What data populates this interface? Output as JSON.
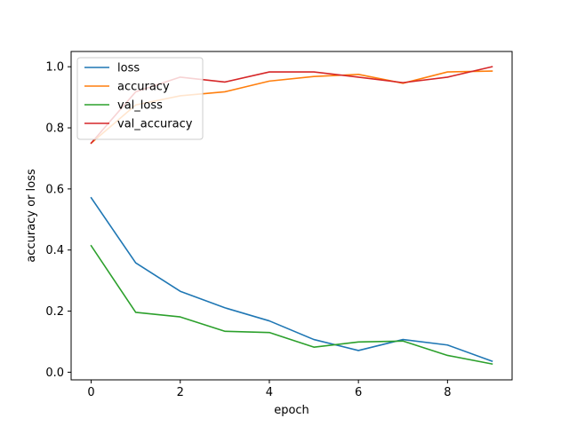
{
  "chart_data": {
    "type": "line",
    "title": "",
    "xlabel": "epoch",
    "ylabel": "accuracy or loss",
    "xlim": [
      -0.45,
      9.45
    ],
    "ylim": [
      -0.025,
      1.05
    ],
    "xticks": [
      0,
      2,
      4,
      6,
      8
    ],
    "yticks": [
      0.0,
      0.2,
      0.4,
      0.6,
      0.8,
      1.0
    ],
    "grid": false,
    "legend_position": "top-left",
    "x": [
      0,
      1,
      2,
      3,
      4,
      5,
      6,
      7,
      8,
      9
    ],
    "series": [
      {
        "name": "loss",
        "color": "#1f77b4",
        "values": [
          0.571,
          0.358,
          0.265,
          0.211,
          0.168,
          0.107,
          0.071,
          0.107,
          0.089,
          0.036
        ]
      },
      {
        "name": "accuracy",
        "color": "#ff7f0e",
        "values": [
          0.75,
          0.875,
          0.905,
          0.918,
          0.953,
          0.968,
          0.975,
          0.946,
          0.983,
          0.986
        ]
      },
      {
        "name": "val_loss",
        "color": "#2ca02c",
        "values": [
          0.414,
          0.196,
          0.181,
          0.134,
          0.13,
          0.082,
          0.099,
          0.102,
          0.055,
          0.027
        ]
      },
      {
        "name": "val_accuracy",
        "color": "#d62728",
        "values": [
          0.75,
          0.918,
          0.966,
          0.95,
          0.983,
          0.983,
          0.966,
          0.948,
          0.966,
          1.0
        ]
      }
    ]
  }
}
